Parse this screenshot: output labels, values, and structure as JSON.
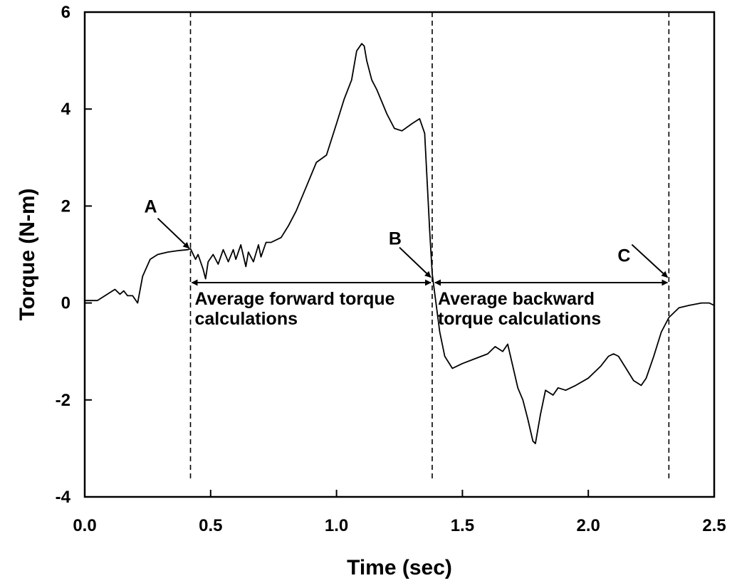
{
  "chart_data": {
    "type": "line",
    "xlabel": "Time (sec)",
    "ylabel": "Torque (N-m)",
    "xlim": [
      0,
      2.5
    ],
    "ylim": [
      -4,
      6
    ],
    "xticks": [
      "0.0",
      "0.5",
      "1.0",
      "1.5",
      "2.0",
      "2.5"
    ],
    "yticks": [
      "-4",
      "-2",
      "0",
      "2",
      "4",
      "6"
    ],
    "grid": false,
    "series": [
      {
        "x": [
          0.0,
          0.05,
          0.09,
          0.12,
          0.14,
          0.155,
          0.17,
          0.19,
          0.21,
          0.23,
          0.26,
          0.29,
          0.33,
          0.37,
          0.41,
          0.42,
          0.44,
          0.45,
          0.47,
          0.48,
          0.49,
          0.51,
          0.53,
          0.55,
          0.57,
          0.59,
          0.6,
          0.62,
          0.64,
          0.65,
          0.67,
          0.69,
          0.7,
          0.72,
          0.74,
          0.78,
          0.81,
          0.84,
          0.88,
          0.92,
          0.96,
          1.0,
          1.03,
          1.06,
          1.08,
          1.1,
          1.11,
          1.12,
          1.14,
          1.16,
          1.2,
          1.23,
          1.26,
          1.3,
          1.33,
          1.35,
          1.36,
          1.37,
          1.38,
          1.39,
          1.41,
          1.43,
          1.46,
          1.5,
          1.55,
          1.6,
          1.63,
          1.66,
          1.68,
          1.7,
          1.72,
          1.74,
          1.76,
          1.78,
          1.79,
          1.81,
          1.83,
          1.86,
          1.88,
          1.91,
          1.95,
          2.0,
          2.05,
          2.08,
          2.1,
          2.12,
          2.15,
          2.18,
          2.21,
          2.23,
          2.26,
          2.29,
          2.32,
          2.36,
          2.4,
          2.45,
          2.48,
          2.5
        ],
        "values": [
          0.05,
          0.05,
          0.18,
          0.28,
          0.18,
          0.25,
          0.15,
          0.15,
          0.0,
          0.55,
          0.9,
          1.0,
          1.05,
          1.08,
          1.1,
          1.12,
          0.9,
          1.0,
          0.7,
          0.5,
          0.85,
          1.0,
          0.8,
          1.1,
          0.85,
          1.1,
          0.9,
          1.2,
          0.75,
          1.05,
          0.85,
          1.2,
          0.95,
          1.25,
          1.25,
          1.35,
          1.6,
          1.9,
          2.4,
          2.9,
          3.05,
          3.7,
          4.2,
          4.6,
          5.2,
          5.35,
          5.3,
          5.0,
          4.6,
          4.4,
          3.9,
          3.6,
          3.55,
          3.7,
          3.8,
          3.5,
          2.5,
          1.5,
          0.6,
          0.2,
          -0.6,
          -1.1,
          -1.35,
          -1.25,
          -1.15,
          -1.05,
          -0.9,
          -1.0,
          -0.85,
          -1.3,
          -1.75,
          -2.0,
          -2.4,
          -2.85,
          -2.9,
          -2.3,
          -1.8,
          -1.9,
          -1.75,
          -1.8,
          -1.7,
          -1.55,
          -1.3,
          -1.1,
          -1.05,
          -1.1,
          -1.35,
          -1.6,
          -1.7,
          -1.55,
          -1.1,
          -0.6,
          -0.3,
          -0.1,
          -0.05,
          0.0,
          0.0,
          -0.05
        ]
      }
    ],
    "reference_lines_x": [
      0.42,
      1.38,
      2.32
    ],
    "annotations": {
      "marker_a": {
        "label": "A",
        "x": 0.42,
        "y": 1.1
      },
      "marker_b": {
        "label": "B",
        "x": 1.38,
        "y": 0.5
      },
      "marker_c": {
        "label": "C",
        "x": 2.32,
        "y": 0.5
      },
      "forward_span": {
        "from": 0.42,
        "to": 1.38,
        "y": 0.42,
        "line1": "Average forward torque",
        "line2": "calculations"
      },
      "backward_span": {
        "from": 1.38,
        "to": 2.32,
        "y": 0.42,
        "line1": "Average backward",
        "line2": "torque calculations"
      }
    },
    "colors": {
      "line": "#000000",
      "background": "#ffffff"
    }
  }
}
